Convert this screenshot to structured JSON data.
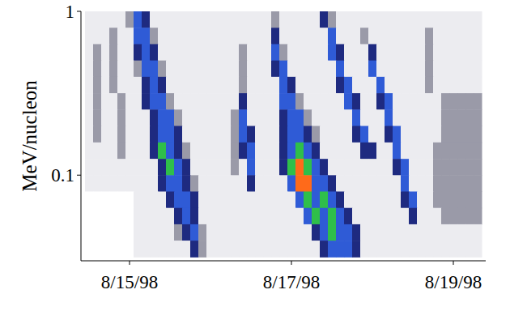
{
  "chart_data": {
    "type": "heatmap",
    "ylabel": "MeV/nucleon",
    "x": [
      14.5,
      14.6,
      14.7,
      14.8,
      14.9,
      15.0,
      15.1,
      15.2,
      15.3,
      15.4,
      15.5,
      15.6,
      15.7,
      15.8,
      15.9,
      16.0,
      16.1,
      16.2,
      16.3,
      16.4,
      16.5,
      16.6,
      16.7,
      16.8,
      16.9,
      17.0,
      17.1,
      17.2,
      17.3,
      17.4,
      17.5,
      17.6,
      17.7,
      17.8,
      17.9,
      18.0,
      18.1,
      18.2,
      18.3,
      18.4,
      18.5,
      18.6,
      18.7,
      18.8,
      18.9,
      19.0,
      19.1,
      19.2,
      19.3
    ],
    "y": [
      0.891,
      0.708,
      0.562,
      0.447,
      0.355,
      0.282,
      0.224,
      0.178,
      0.141,
      0.112,
      0.0891,
      0.0708,
      0.0562,
      0.0447,
      0.0355
    ],
    "values": [
      [
        1,
        1,
        1,
        1,
        1,
        2,
        4,
        3,
        1,
        1,
        1,
        1,
        1,
        1,
        1,
        1,
        1,
        1,
        1,
        1,
        1,
        1,
        1,
        2,
        1,
        1,
        1,
        1,
        1,
        3,
        2,
        1,
        1,
        1,
        1,
        1,
        1,
        1,
        1,
        1,
        1,
        1,
        1,
        1,
        1,
        1,
        1,
        1,
        1
      ],
      [
        1,
        1,
        1,
        2,
        1,
        1,
        4,
        4,
        2,
        1,
        1,
        1,
        1,
        1,
        1,
        1,
        1,
        1,
        1,
        1,
        1,
        1,
        1,
        3,
        1,
        1,
        1,
        1,
        1,
        1,
        4,
        1,
        1,
        1,
        2,
        1,
        1,
        1,
        1,
        1,
        1,
        1,
        2,
        1,
        1,
        1,
        1,
        1,
        1
      ],
      [
        1,
        2,
        1,
        2,
        1,
        1,
        3,
        4,
        3,
        1,
        1,
        1,
        1,
        1,
        1,
        1,
        1,
        1,
        1,
        2,
        1,
        1,
        1,
        4,
        2,
        1,
        1,
        1,
        1,
        1,
        4,
        3,
        1,
        1,
        1,
        3,
        1,
        1,
        1,
        1,
        1,
        1,
        2,
        1,
        1,
        1,
        1,
        1,
        1
      ],
      [
        1,
        2,
        1,
        2,
        1,
        1,
        2,
        4,
        4,
        2,
        1,
        1,
        1,
        1,
        1,
        1,
        1,
        1,
        1,
        2,
        1,
        1,
        1,
        3,
        4,
        1,
        1,
        1,
        1,
        1,
        1,
        4,
        1,
        1,
        1,
        4,
        1,
        1,
        1,
        1,
        1,
        1,
        2,
        1,
        1,
        1,
        1,
        1,
        1
      ],
      [
        1,
        2,
        1,
        2,
        1,
        1,
        1,
        3,
        4,
        3,
        1,
        1,
        1,
        1,
        1,
        1,
        1,
        1,
        1,
        2,
        1,
        1,
        1,
        1,
        4,
        3,
        1,
        1,
        1,
        1,
        1,
        3,
        4,
        1,
        1,
        1,
        4,
        1,
        1,
        1,
        1,
        1,
        2,
        1,
        1,
        1,
        1,
        1,
        1
      ],
      [
        1,
        2,
        1,
        1,
        2,
        1,
        1,
        3,
        4,
        4,
        2,
        1,
        1,
        1,
        1,
        1,
        1,
        1,
        1,
        3,
        1,
        1,
        1,
        1,
        4,
        4,
        2,
        1,
        1,
        1,
        1,
        1,
        4,
        3,
        1,
        1,
        3,
        4,
        1,
        1,
        1,
        1,
        1,
        1,
        2,
        2,
        2,
        2,
        2
      ],
      [
        1,
        2,
        1,
        1,
        2,
        1,
        1,
        1,
        3,
        4,
        4,
        2,
        1,
        1,
        1,
        1,
        1,
        1,
        2,
        4,
        1,
        1,
        1,
        1,
        3,
        4,
        4,
        2,
        1,
        1,
        1,
        1,
        1,
        4,
        1,
        1,
        1,
        4,
        1,
        1,
        1,
        1,
        1,
        1,
        2,
        2,
        2,
        2,
        2
      ],
      [
        1,
        2,
        1,
        1,
        2,
        1,
        1,
        1,
        3,
        4,
        4,
        3,
        1,
        1,
        1,
        1,
        1,
        1,
        2,
        4,
        3,
        1,
        1,
        1,
        3,
        4,
        4,
        3,
        2,
        1,
        1,
        1,
        1,
        3,
        4,
        1,
        1,
        3,
        4,
        1,
        1,
        1,
        1,
        1,
        2,
        2,
        2,
        2,
        2
      ],
      [
        1,
        1,
        1,
        1,
        2,
        1,
        1,
        1,
        3,
        5,
        4,
        3,
        2,
        1,
        1,
        1,
        1,
        1,
        2,
        3,
        4,
        1,
        1,
        1,
        3,
        4,
        5,
        4,
        3,
        1,
        1,
        1,
        1,
        1,
        3,
        3,
        1,
        1,
        4,
        1,
        1,
        1,
        1,
        2,
        2,
        2,
        2,
        2,
        2
      ],
      [
        1,
        1,
        1,
        1,
        1,
        1,
        1,
        1,
        1,
        3,
        5,
        4,
        3,
        1,
        1,
        1,
        1,
        1,
        2,
        1,
        4,
        1,
        1,
        1,
        3,
        5,
        6,
        5,
        4,
        3,
        1,
        1,
        1,
        1,
        1,
        1,
        1,
        1,
        3,
        4,
        1,
        1,
        1,
        2,
        2,
        2,
        2,
        2,
        2
      ],
      [
        1,
        1,
        1,
        1,
        1,
        1,
        1,
        1,
        1,
        3,
        4,
        4,
        3,
        2,
        1,
        1,
        1,
        1,
        1,
        1,
        3,
        1,
        1,
        1,
        1,
        4,
        6,
        6,
        4,
        4,
        3,
        1,
        1,
        1,
        1,
        1,
        1,
        1,
        1,
        4,
        1,
        1,
        1,
        2,
        2,
        2,
        2,
        2,
        2
      ],
      [
        0,
        0,
        0,
        0,
        0,
        0,
        1,
        1,
        1,
        1,
        3,
        4,
        4,
        3,
        1,
        1,
        1,
        1,
        1,
        1,
        1,
        1,
        1,
        1,
        1,
        1,
        4,
        5,
        4,
        5,
        4,
        3,
        1,
        1,
        1,
        1,
        1,
        1,
        1,
        3,
        4,
        1,
        1,
        2,
        2,
        2,
        2,
        2,
        2
      ],
      [
        0,
        0,
        0,
        0,
        0,
        0,
        1,
        1,
        1,
        1,
        1,
        3,
        4,
        3,
        1,
        1,
        1,
        1,
        1,
        1,
        1,
        1,
        1,
        1,
        1,
        1,
        1,
        4,
        5,
        4,
        5,
        4,
        3,
        1,
        1,
        1,
        1,
        1,
        1,
        1,
        3,
        1,
        1,
        1,
        2,
        2,
        2,
        2,
        2
      ],
      [
        0,
        0,
        0,
        0,
        0,
        0,
        1,
        1,
        1,
        1,
        1,
        2,
        3,
        4,
        2,
        1,
        1,
        1,
        1,
        1,
        1,
        1,
        1,
        1,
        1,
        1,
        1,
        1,
        3,
        4,
        5,
        4,
        4,
        3,
        1,
        1,
        1,
        1,
        1,
        1,
        1,
        1,
        1,
        1,
        1,
        1,
        1,
        1,
        1
      ],
      [
        0,
        0,
        0,
        0,
        0,
        0,
        1,
        1,
        1,
        1,
        1,
        1,
        1,
        3,
        2,
        1,
        1,
        1,
        1,
        1,
        1,
        1,
        1,
        1,
        1,
        1,
        1,
        1,
        1,
        3,
        4,
        4,
        4,
        3,
        1,
        1,
        1,
        1,
        1,
        1,
        1,
        1,
        1,
        1,
        1,
        1,
        1,
        1,
        1
      ]
    ],
    "colors": [
      "#ffffff",
      "#ececf0",
      "#9a9aa8",
      "#1e2a80",
      "#2f5bd6",
      "#2fbf4a",
      "#ff6a1a"
    ],
    "xlim": [
      14.4,
      19.4
    ],
    "ylim": [
      0.03,
      1
    ],
    "xticks": [
      {
        "value": 15,
        "label": "8/15/98"
      },
      {
        "value": 17,
        "label": "8/17/98"
      },
      {
        "value": 19,
        "label": "8/19/98"
      }
    ],
    "yticks": [
      0.1,
      1
    ],
    "log": "y",
    "grid": false
  }
}
